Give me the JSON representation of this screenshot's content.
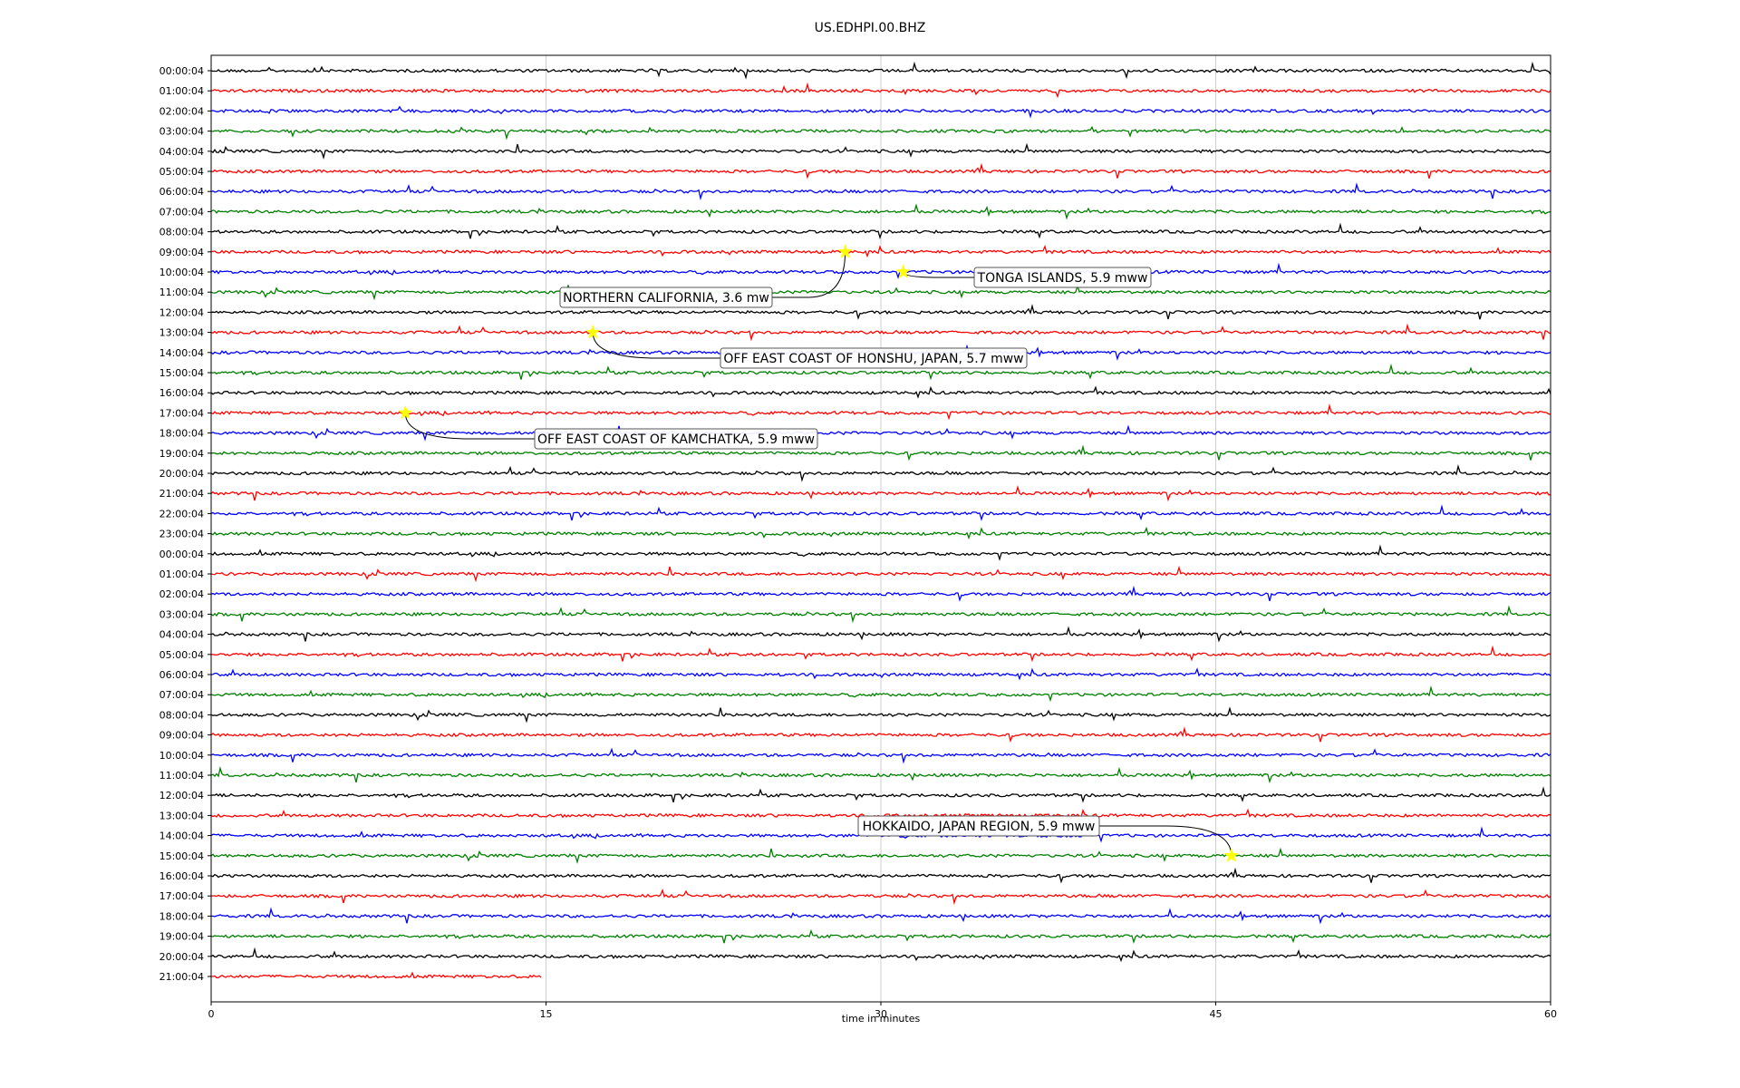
{
  "chart_data": {
    "type": "line",
    "title": "US.EDHPI.00.BHZ",
    "xlabel": "time in minutes",
    "ylabel": "",
    "xlim": [
      0,
      60
    ],
    "x_ticks": [
      "0",
      "15",
      "30",
      "45",
      "60"
    ],
    "grid": "vertical",
    "row_labels": [
      "00:00:04",
      "01:00:04",
      "02:00:04",
      "03:00:04",
      "04:00:04",
      "05:00:04",
      "06:00:04",
      "07:00:04",
      "08:00:04",
      "09:00:04",
      "10:00:04",
      "11:00:04",
      "12:00:04",
      "13:00:04",
      "14:00:04",
      "15:00:04",
      "16:00:04",
      "17:00:04",
      "18:00:04",
      "19:00:04",
      "20:00:04",
      "21:00:04",
      "22:00:04",
      "23:00:04",
      "00:00:04",
      "01:00:04",
      "02:00:04",
      "03:00:04",
      "04:00:04",
      "05:00:04",
      "06:00:04",
      "07:00:04",
      "08:00:04",
      "09:00:04",
      "10:00:04",
      "11:00:04",
      "12:00:04",
      "13:00:04",
      "14:00:04",
      "15:00:04",
      "16:00:04",
      "17:00:04",
      "18:00:04",
      "19:00:04",
      "20:00:04",
      "21:00:04"
    ],
    "trace_colors": [
      "#000000",
      "#ff0000",
      "#0000ff",
      "#008000"
    ],
    "last_trace_end_minutes": 14.8,
    "events": [
      {
        "label": "TONGA ISLANDS, 5.9 mww",
        "row": 10,
        "minute": 31.0
      },
      {
        "label": "NORTHERN CALIFORNIA, 3.6 mw",
        "row": 9,
        "minute": 28.4
      },
      {
        "label": "OFF EAST COAST OF HONSHU, JAPAN, 5.7 mww",
        "row": 13,
        "minute": 17.1
      },
      {
        "label": "OFF EAST COAST OF KAMCHATKA, 5.9 mww",
        "row": 17,
        "minute": 8.7
      },
      {
        "label": "HOKKAIDO, JAPAN REGION, 5.9 mww",
        "row": 39,
        "minute": 45.7
      }
    ],
    "marker_color": "#ffff00"
  }
}
